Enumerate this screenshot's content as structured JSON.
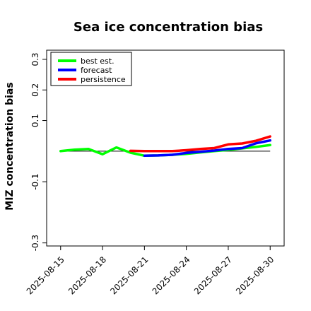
{
  "chart_data": {
    "type": "line",
    "title": "Sea ice concentration bias",
    "ylabel": "MIZ concentration bias",
    "xlabel": "",
    "ylim": [
      -0.31,
      0.33
    ],
    "yticks": [
      -0.3,
      -0.1,
      0.1,
      0.2,
      0.3
    ],
    "ytick_labels": [
      "-0.3",
      "-0.1",
      "0.1",
      "0.2",
      "0.3"
    ],
    "xlim": [
      "2025-08-14",
      "2025-08-31"
    ],
    "xticks": [
      "2025-08-15",
      "2025-08-18",
      "2025-08-21",
      "2025-08-24",
      "2025-08-27",
      "2025-08-30"
    ],
    "highlight_xtick": "2025-08-21",
    "highlight_color": "#228B22",
    "legend_position": "upper-left",
    "zero_line": true,
    "series": [
      {
        "name": "best est.",
        "color": "#00ff00",
        "x": [
          "2025-08-15",
          "2025-08-16",
          "2025-08-17",
          "2025-08-18",
          "2025-08-19",
          "2025-08-20",
          "2025-08-21"
        ],
        "y": [
          0.0,
          0.005,
          0.007,
          -0.01,
          0.012,
          -0.005,
          -0.015
        ]
      },
      {
        "name": "best est.",
        "color": "#00ff00",
        "x": [
          "2025-08-21",
          "2025-08-22",
          "2025-08-23",
          "2025-08-24",
          "2025-08-25",
          "2025-08-26",
          "2025-08-27",
          "2025-08-28",
          "2025-08-29",
          "2025-08-30"
        ],
        "y": [
          -0.015,
          -0.014,
          -0.012,
          -0.009,
          -0.004,
          0.0,
          0.004,
          0.009,
          0.014,
          0.02
        ]
      },
      {
        "name": "forecast",
        "color": "#0000ff",
        "x": [
          "2025-08-21",
          "2025-08-22",
          "2025-08-23",
          "2025-08-24",
          "2025-08-25",
          "2025-08-26",
          "2025-08-27",
          "2025-08-28",
          "2025-08-29",
          "2025-08-30"
        ],
        "y": [
          -0.015,
          -0.014,
          -0.012,
          -0.006,
          -0.002,
          0.002,
          0.007,
          0.01,
          0.026,
          0.035
        ]
      },
      {
        "name": "persistence",
        "color": "#ff0000",
        "x": [
          "2025-08-20",
          "2025-08-21",
          "2025-08-22",
          "2025-08-23",
          "2025-08-24",
          "2025-08-25",
          "2025-08-26",
          "2025-08-27",
          "2025-08-28",
          "2025-08-29",
          "2025-08-30"
        ],
        "y": [
          0.001,
          0.0,
          0.0,
          0.0,
          0.003,
          0.007,
          0.01,
          0.022,
          0.025,
          0.034,
          0.048
        ]
      }
    ]
  }
}
